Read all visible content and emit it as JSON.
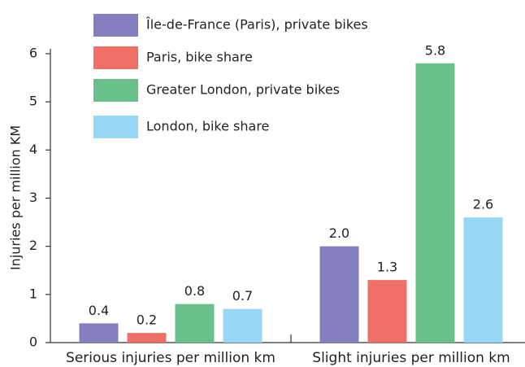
{
  "chart_data": {
    "type": "bar",
    "y_axis_label": "Injuries per million KM",
    "categories": [
      "Serious injuries per million km",
      "Slight injuries per million km"
    ],
    "series": [
      {
        "name": "Île-de-France (Paris), private bikes",
        "color": "#8480c0",
        "values": [
          0.4,
          2.0
        ],
        "value_labels": [
          "0.4",
          "2.0"
        ]
      },
      {
        "name": "Paris, bike share",
        "color": "#f07067",
        "values": [
          0.2,
          1.3
        ],
        "value_labels": [
          "0.2",
          "1.3"
        ]
      },
      {
        "name": "Greater London, private bikes",
        "color": "#67c08a",
        "values": [
          0.8,
          5.8
        ],
        "value_labels": [
          "0.8",
          "5.8"
        ]
      },
      {
        "name": "London, bike share",
        "color": "#96d8f5",
        "values": [
          0.7,
          2.6
        ],
        "value_labels": [
          "0.7",
          "2.6"
        ]
      }
    ],
    "ylim": [
      0,
      6
    ],
    "yticks": [
      0,
      1,
      2,
      3,
      4,
      5,
      6
    ],
    "legend": "top-left",
    "grid": false
  }
}
